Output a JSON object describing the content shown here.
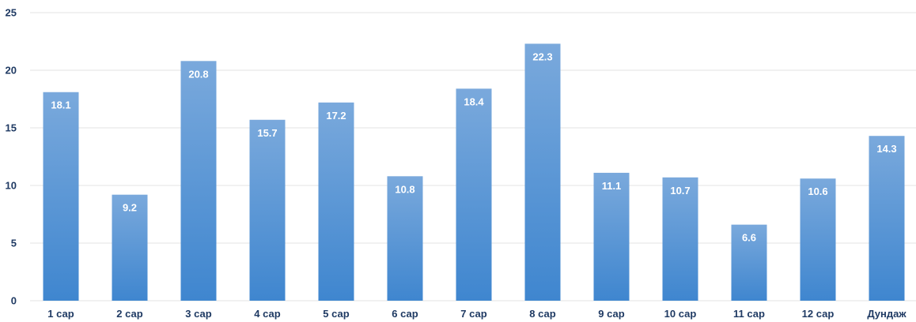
{
  "chart_data": {
    "type": "bar",
    "title": "",
    "xlabel": "",
    "ylabel": "",
    "categories": [
      "1 сар",
      "2 сар",
      "3 сар",
      "4 сар",
      "5 сар",
      "6 сар",
      "7 сар",
      "8 сар",
      "9 сар",
      "10 сар",
      "11 сар",
      "12 сар",
      "Дундаж"
    ],
    "values": [
      18.1,
      9.2,
      20.8,
      15.7,
      17.2,
      10.8,
      18.4,
      22.3,
      11.1,
      10.7,
      6.6,
      10.6,
      14.3
    ],
    "data_labels": [
      "18.1",
      "9.2",
      "20.8",
      "15.7",
      "17.2",
      "10.8",
      "18.4",
      "22.3",
      "11.1",
      "10.7",
      "6.6",
      "10.6",
      "14.3"
    ],
    "ylim": [
      0,
      25
    ],
    "yticks": [
      0,
      5,
      10,
      15,
      20,
      25
    ],
    "ytick_labels": [
      "0",
      "5",
      "10",
      "15",
      "20",
      "25"
    ],
    "grid": true,
    "legend": "none",
    "colors": {
      "bar_top": "#7aa9dc",
      "bar_bottom": "#3f86cf",
      "grid": "#e3e3e3",
      "axis_text": "#1f3a63",
      "data_label": "#ffffff"
    }
  }
}
